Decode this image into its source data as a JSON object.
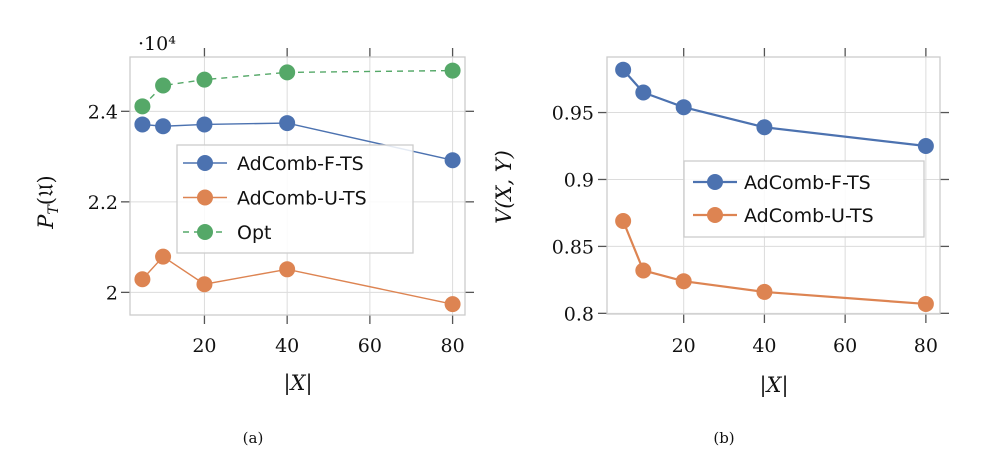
{
  "colors": {
    "AdComb-F-TS": "#4c72b0",
    "AdComb-U-TS": "#dd8452",
    "Opt": "#55a868",
    "grid": "#dcdcdc",
    "frame": "#cccccc",
    "tick": "#555555"
  },
  "chart_data": [
    {
      "type": "line",
      "caption": "(a)",
      "xlabel": "|X|",
      "ylabel": "P_T(𝔘)",
      "y_multiplier_label": "·10⁴",
      "x": [
        5,
        10,
        20,
        40,
        80
      ],
      "xlim": [
        2,
        83
      ],
      "ylim": [
        1.95,
        2.52
      ],
      "xticks": [
        20,
        40,
        60,
        80
      ],
      "xtick_labels": [
        "20",
        "40",
        "60",
        "80"
      ],
      "yticks": [
        2.0,
        2.2,
        2.4
      ],
      "ytick_labels": [
        "2",
        "2.2",
        "2.4"
      ],
      "grid": true,
      "legend_position": "center",
      "series": [
        {
          "name": "AdComb-F-TS",
          "style": "solid",
          "values": [
            2.371,
            2.367,
            2.371,
            2.374,
            2.292
          ]
        },
        {
          "name": "AdComb-U-TS",
          "style": "solid",
          "values": [
            2.029,
            2.079,
            2.018,
            2.051,
            1.974
          ]
        },
        {
          "name": "Opt",
          "style": "dashed",
          "values": [
            2.411,
            2.457,
            2.47,
            2.486,
            2.49
          ]
        }
      ]
    },
    {
      "type": "line",
      "caption": "(b)",
      "xlabel": "|X|",
      "ylabel": "V(X, Y)",
      "x": [
        5,
        10,
        20,
        40,
        80
      ],
      "xlim": [
        1,
        83.5
      ],
      "ylim": [
        0.7995,
        0.9915
      ],
      "xticks": [
        20,
        40,
        60,
        80
      ],
      "xtick_labels": [
        "20",
        "40",
        "60",
        "80"
      ],
      "yticks": [
        0.8,
        0.85,
        0.9,
        0.95
      ],
      "ytick_labels": [
        "0.8",
        "0.85",
        "0.9",
        "0.95"
      ],
      "grid": true,
      "legend_position": "center-right",
      "series": [
        {
          "name": "AdComb-F-TS",
          "style": "solid",
          "values": [
            0.982,
            0.965,
            0.954,
            0.939,
            0.925
          ]
        },
        {
          "name": "AdComb-U-TS",
          "style": "solid",
          "values": [
            0.869,
            0.832,
            0.824,
            0.816,
            0.807
          ]
        }
      ]
    }
  ]
}
